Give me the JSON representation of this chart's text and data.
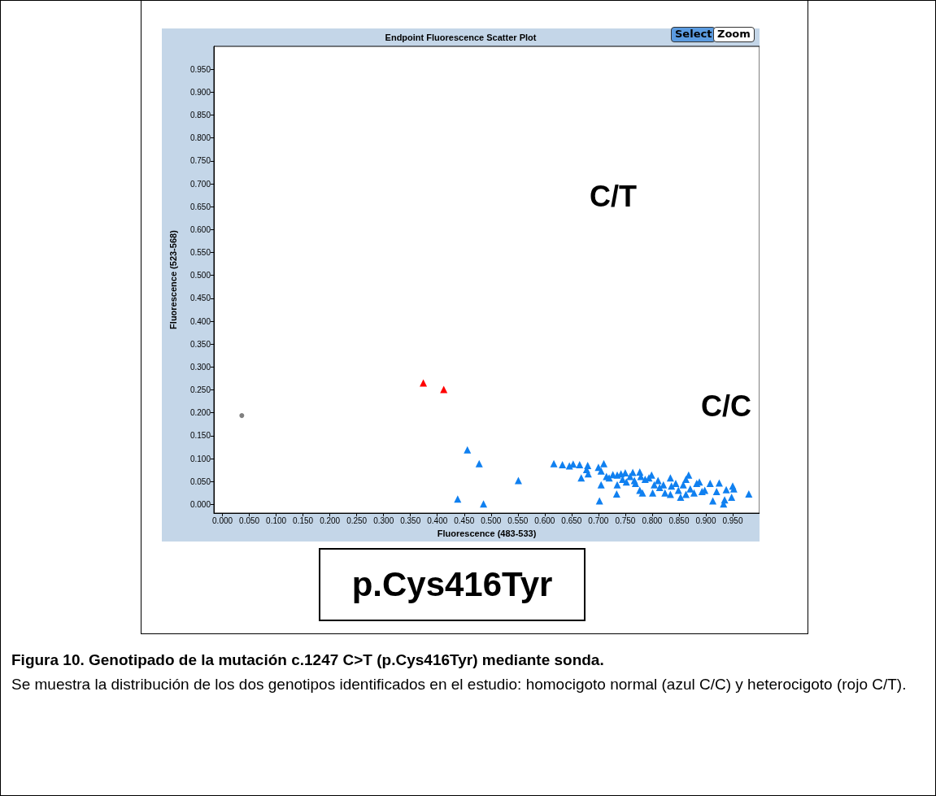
{
  "chart_data": {
    "type": "scatter",
    "title": "Endpoint Fluorescence Scatter Plot",
    "xlabel": "Fluorescence (483-533)",
    "ylabel": "Fluorescence (523-568)",
    "xlim": [
      -0.016,
      1.0
    ],
    "ylim": [
      -0.019,
      1.0
    ],
    "xticks": [
      {
        "value": 0,
        "label": "0.000"
      },
      {
        "value": 0.05,
        "label": "0.050"
      },
      {
        "value": 0.1,
        "label": "0.100"
      },
      {
        "value": 0.15,
        "label": "0.150"
      },
      {
        "value": 0.2,
        "label": "0.200"
      },
      {
        "value": 0.25,
        "label": "0.250"
      },
      {
        "value": 0.3,
        "label": "0.300"
      },
      {
        "value": 0.35,
        "label": "0.350"
      },
      {
        "value": 0.4,
        "label": "0.400"
      },
      {
        "value": 0.45,
        "label": "0.450"
      },
      {
        "value": 0.5,
        "label": "0.500"
      },
      {
        "value": 0.55,
        "label": "0.550"
      },
      {
        "value": 0.6,
        "label": "0.600"
      },
      {
        "value": 0.65,
        "label": "0.650"
      },
      {
        "value": 0.7,
        "label": "0.700"
      },
      {
        "value": 0.75,
        "label": "0.750"
      },
      {
        "value": 0.8,
        "label": "0.800"
      },
      {
        "value": 0.85,
        "label": "0.850"
      },
      {
        "value": 0.9,
        "label": "0.900"
      },
      {
        "value": 0.95,
        "label": "0.950"
      }
    ],
    "yticks": [
      {
        "value": 0,
        "label": "0.000"
      },
      {
        "value": 0.05,
        "label": "0.050"
      },
      {
        "value": 0.1,
        "label": "0.100"
      },
      {
        "value": 0.15,
        "label": "0.150"
      },
      {
        "value": 0.2,
        "label": "0.200"
      },
      {
        "value": 0.25,
        "label": "0.250"
      },
      {
        "value": 0.3,
        "label": "0.300"
      },
      {
        "value": 0.35,
        "label": "0.350"
      },
      {
        "value": 0.4,
        "label": "0.400"
      },
      {
        "value": 0.45,
        "label": "0.450"
      },
      {
        "value": 0.5,
        "label": "0.500"
      },
      {
        "value": 0.55,
        "label": "0.550"
      },
      {
        "value": 0.6,
        "label": "0.600"
      },
      {
        "value": 0.65,
        "label": "0.650"
      },
      {
        "value": 0.7,
        "label": "0.700"
      },
      {
        "value": 0.75,
        "label": "0.750"
      },
      {
        "value": 0.8,
        "label": "0.800"
      },
      {
        "value": 0.85,
        "label": "0.850"
      },
      {
        "value": 0.9,
        "label": "0.900"
      },
      {
        "value": 0.95,
        "label": "0.950"
      }
    ],
    "series": [
      {
        "color": "#808080",
        "marker": "circle",
        "x": [
          0.036
        ],
        "values": [
          0.194
        ]
      },
      {
        "color": "#ff0000",
        "marker": "triangle",
        "x": [
          0.374,
          0.412
        ],
        "values": [
          0.265,
          0.251
        ]
      },
      {
        "color": "#1080f0",
        "marker": "triangle",
        "x": [
          0.456,
          0.478,
          0.438,
          0.486,
          0.551,
          0.617,
          0.633,
          0.646,
          0.653,
          0.665,
          0.68,
          0.678,
          0.681,
          0.668,
          0.7,
          0.71,
          0.705,
          0.705,
          0.702,
          0.715,
          0.72,
          0.727,
          0.735,
          0.735,
          0.734,
          0.742,
          0.75,
          0.745,
          0.752,
          0.759,
          0.764,
          0.767,
          0.769,
          0.777,
          0.779,
          0.777,
          0.782,
          0.787,
          0.794,
          0.799,
          0.804,
          0.801,
          0.811,
          0.814,
          0.821,
          0.824,
          0.834,
          0.836,
          0.834,
          0.844,
          0.849,
          0.853,
          0.858,
          0.863,
          0.868,
          0.871,
          0.863,
          0.878,
          0.883,
          0.888,
          0.893,
          0.898,
          0.908,
          0.913,
          0.92,
          0.925,
          0.935,
          0.938,
          0.933,
          0.95,
          0.952,
          0.948,
          0.98
        ],
        "values": [
          0.119,
          0.089,
          0.012,
          0.001,
          0.052,
          0.089,
          0.087,
          0.084,
          0.088,
          0.087,
          0.085,
          0.076,
          0.067,
          0.058,
          0.081,
          0.089,
          0.073,
          0.043,
          0.008,
          0.061,
          0.058,
          0.065,
          0.064,
          0.043,
          0.023,
          0.067,
          0.069,
          0.055,
          0.049,
          0.061,
          0.07,
          0.052,
          0.046,
          0.071,
          0.061,
          0.031,
          0.025,
          0.055,
          0.058,
          0.064,
          0.043,
          0.025,
          0.052,
          0.037,
          0.043,
          0.025,
          0.058,
          0.04,
          0.022,
          0.046,
          0.031,
          0.016,
          0.043,
          0.055,
          0.064,
          0.034,
          0.022,
          0.025,
          0.046,
          0.049,
          0.028,
          0.031,
          0.046,
          0.008,
          0.028,
          0.047,
          0.01,
          0.032,
          0.001,
          0.04,
          0.034,
          0.016,
          0.023
        ]
      }
    ],
    "annotations": [
      "Select",
      "Zoom",
      "p.Cys416Tyr",
      "Figura 10. Genotipado de la mutación c.1247 C>T (p.Cys416Tyr) mediante sonda.",
      "Se muestra la distribución de los dos genotipos identificados en el estudio: homocigoto normal (azul C/C) y heterocigoto (rojo C/T).",
      "C/T",
      "C/C"
    ]
  }
}
